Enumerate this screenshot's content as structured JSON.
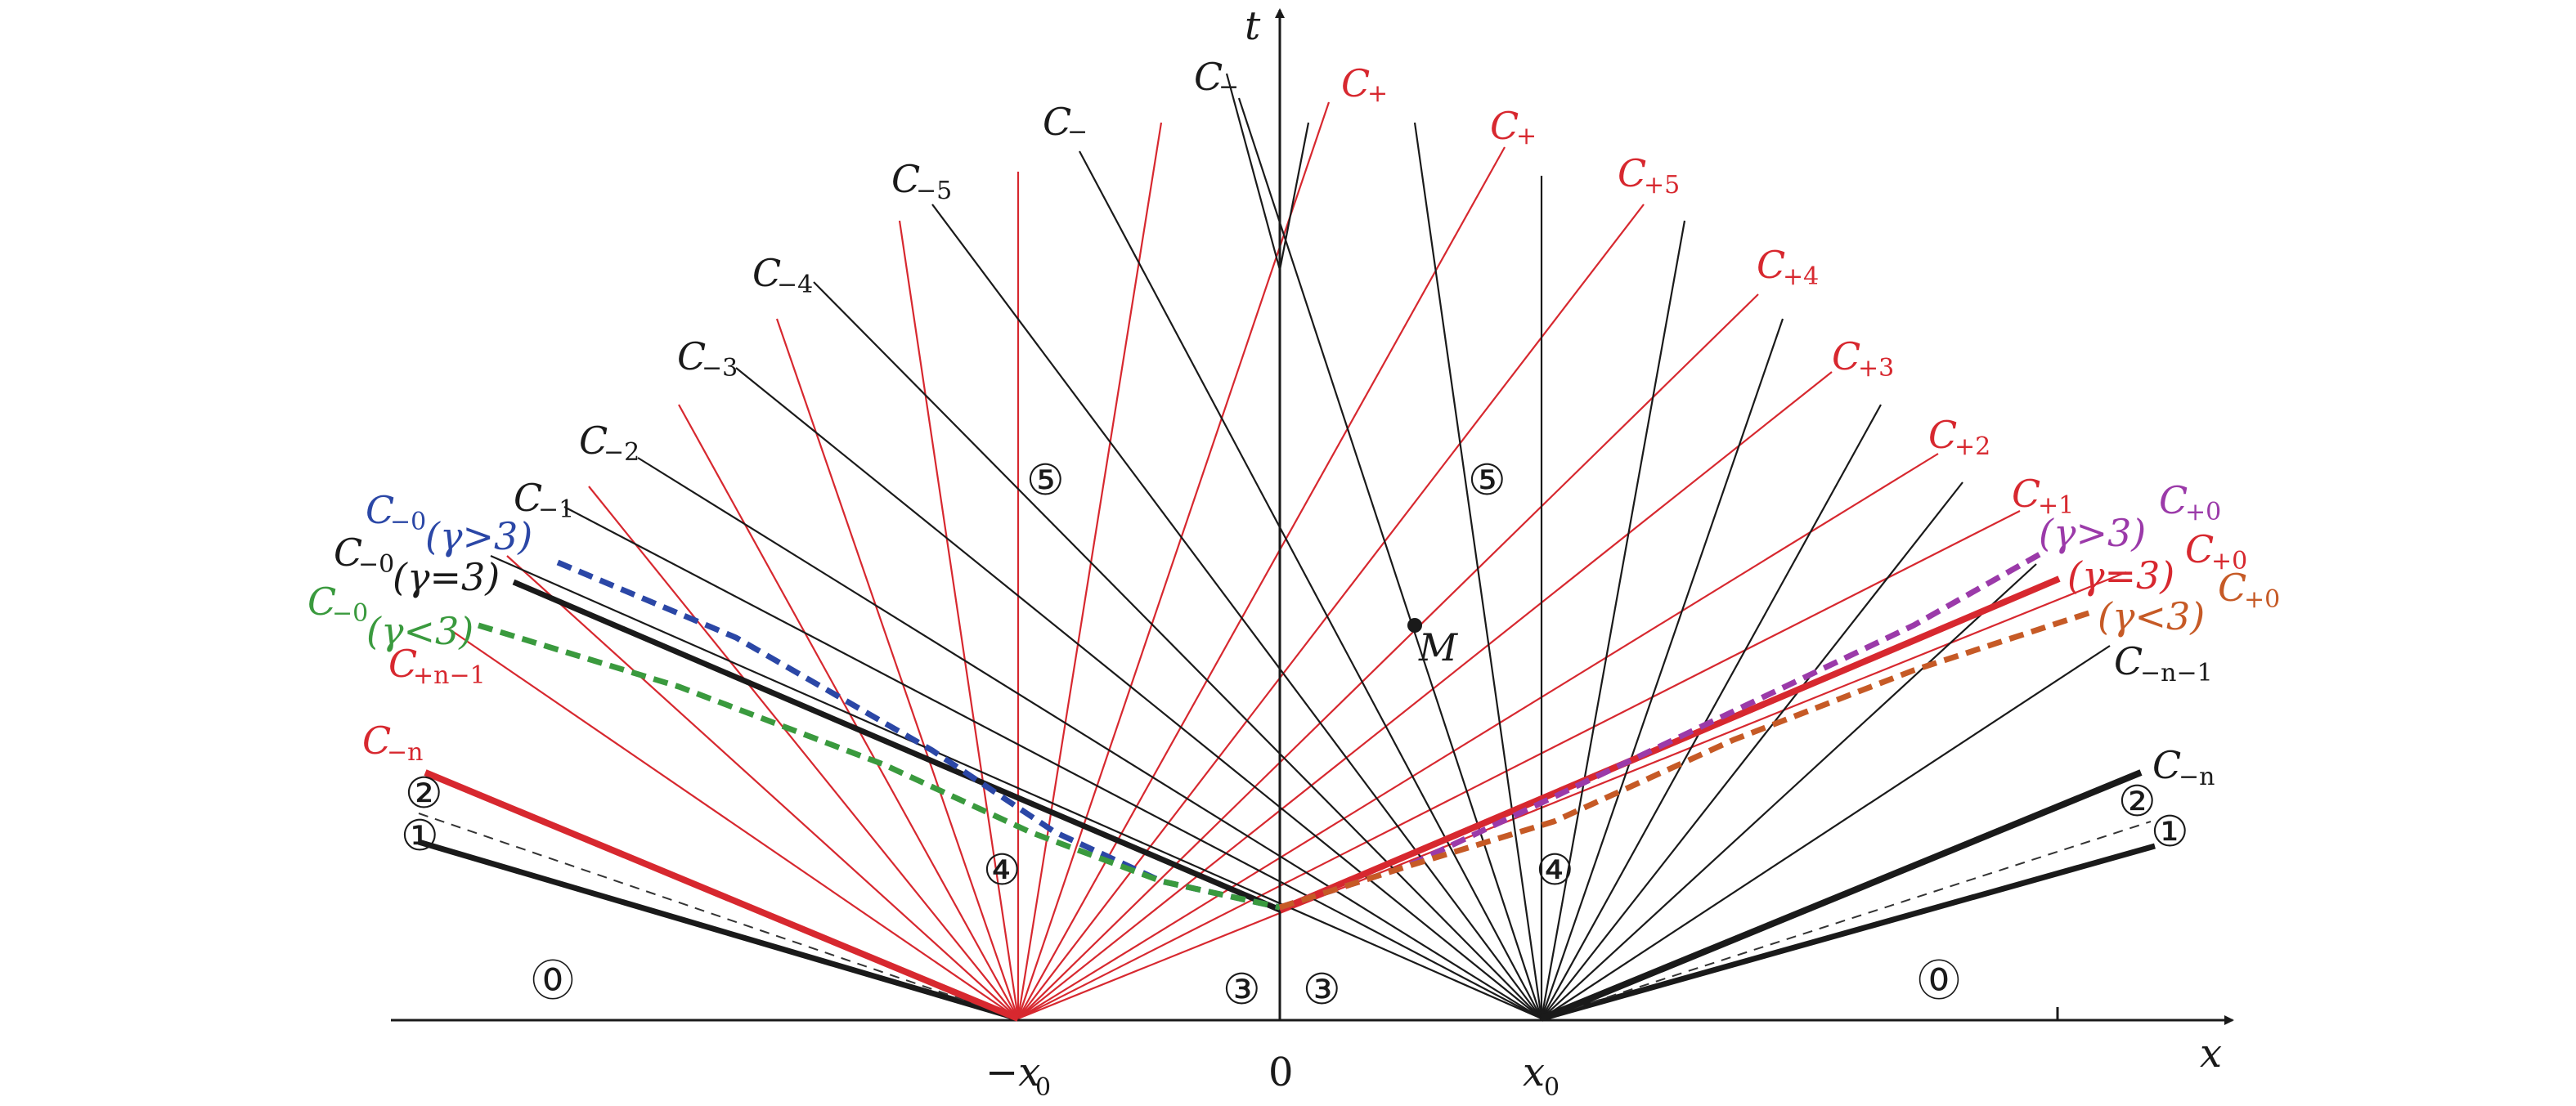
{
  "axes": {
    "x_label": "x",
    "t_label": "t"
  },
  "ticks": {
    "neg": "−x",
    "neg_sub": "0",
    "zero": "0",
    "pos": "x",
    "pos_sub": "0"
  },
  "point_m": "M",
  "colors": {
    "red": "#d7282f",
    "black": "#1a1a1a",
    "blue": "#2b47a6",
    "green": "#3a9a3e",
    "purple": "#9b3aa9",
    "orange": "#c65a26"
  },
  "regions": {
    "r0": "⓪",
    "r1": "①",
    "r2": "②",
    "r3": "③",
    "r4": "④",
    "r5": "⑤"
  },
  "labels": {
    "c_minus": "C",
    "c_plus": "C",
    "minus": "−",
    "plus": "+",
    "minus_1": "−1",
    "minus_2": "−2",
    "minus_3": "−3",
    "minus_4": "−4",
    "minus_5": "−5",
    "plus_1": "+1",
    "plus_2": "+2",
    "plus_3": "+3",
    "plus_4": "+4",
    "plus_5": "+5",
    "minus_0": "−0",
    "plus_0": "+0",
    "minus_n": "−n",
    "plus_n_minus_1": "+n−1",
    "minus_n_minus_1": "−n−1",
    "gamma_gt": "(γ>3)",
    "gamma_eq": "(γ=3)",
    "gamma_lt": "(γ<3)"
  }
}
